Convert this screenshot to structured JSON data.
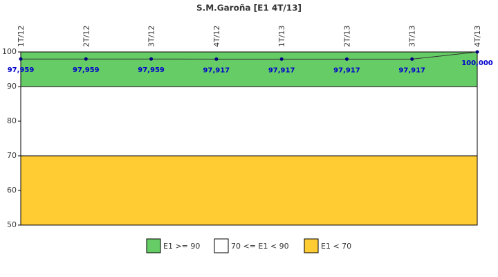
{
  "chart_data": {
    "type": "line",
    "title": "S.M.Garoña [E1 4T/13]",
    "categories": [
      "1T/12",
      "2T/12",
      "3T/12",
      "4T/12",
      "1T/13",
      "2T/13",
      "3T/13",
      "4T/13"
    ],
    "series": [
      {
        "color": "#000080",
        "values": [
          97.959,
          97.959,
          97.959,
          97.917,
          97.917,
          97.917,
          97.917,
          100
        ],
        "value_labels": [
          "97,959",
          "97,959",
          "97,959",
          "97,917",
          "97,917",
          "97,917",
          "97,917",
          "100,000"
        ]
      }
    ],
    "bands": [
      {
        "name": "E1 >= 90",
        "color": "#66cc66",
        "range": [
          90,
          100
        ]
      },
      {
        "name": "70 <= E1 < 90",
        "color": "#ffffff",
        "range": [
          70,
          90
        ]
      },
      {
        "name": "E1 < 70",
        "color": "#ffcc33",
        "range": [
          50,
          70
        ]
      }
    ],
    "ylim": [
      50,
      100
    ],
    "yticks": [
      50,
      60,
      70,
      80,
      90,
      100
    ]
  }
}
